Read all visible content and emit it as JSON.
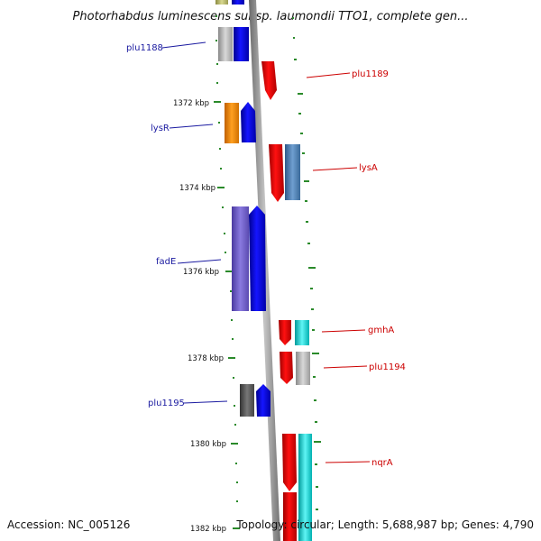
{
  "title": "Photorhabdus luminescens subsp. laumondii TTO1, complete gen...",
  "footer": {
    "accession": "Accession: NC_005126",
    "summary": "Topology: circular; Length: 5,688,987 bp; Genes: 4,790"
  },
  "kbp_labels": [
    "1372 kbp",
    "1374 kbp",
    "1376 kbp",
    "1378 kbp",
    "1380 kbp",
    "1382 kbp"
  ],
  "genes": {
    "plu1188": "plu1188",
    "plu1189": "plu1189",
    "lysR": "lysR",
    "lysA": "lysA",
    "fadE": "fadE",
    "gmhA": "gmhA",
    "plu1194": "plu1194",
    "plu1195": "plu1195",
    "nqrA": "nqrA"
  },
  "colors": {
    "backbone": "#8c8c8c",
    "tick": "#2a8a2a",
    "forward_label": "#1a1aa0",
    "reverse_label": "#cc0000",
    "blue_feature": "#0000ee",
    "red_feature": "#ee0000",
    "orange_feature": "#ff8c00",
    "cyan_feature": "#00cccc"
  }
}
